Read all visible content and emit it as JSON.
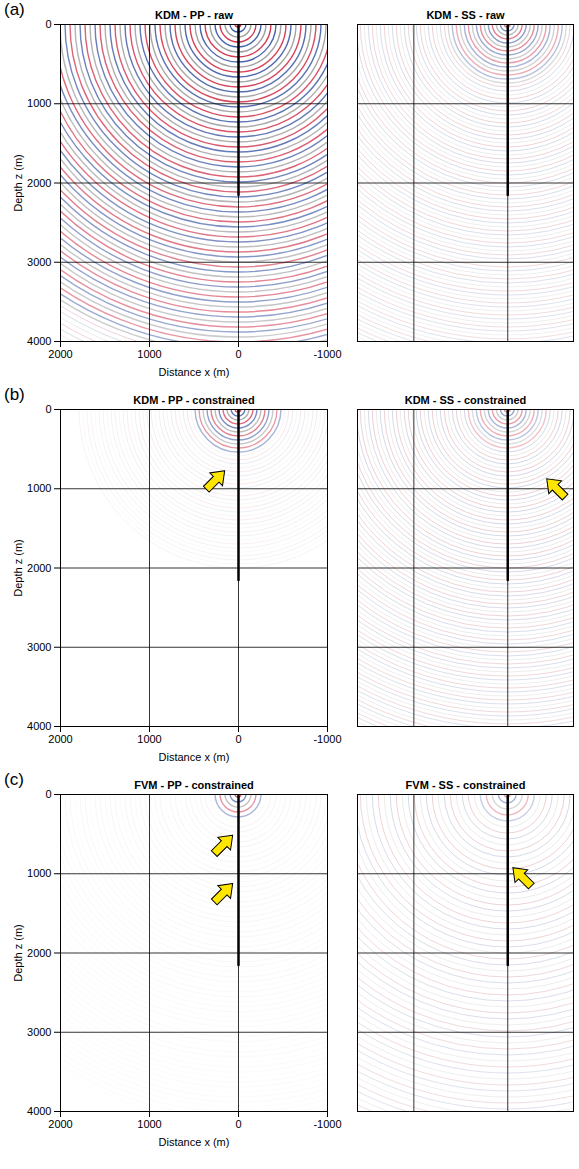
{
  "chart_data": [
    {
      "type": "image",
      "panel": "(a)",
      "title": "KDM - PP - raw",
      "x_label": "Distance x (m)",
      "y_label": "Depth z (m)",
      "xlim": [
        2000,
        -1000
      ],
      "ylim": [
        4000,
        0
      ],
      "xticks": [
        2000,
        1000,
        0,
        -1000
      ],
      "yticks": [
        0,
        1000,
        2000,
        3000,
        4000
      ],
      "grid": true,
      "well": {
        "x": [
          0,
          0
        ],
        "z": [
          0,
          2150
        ]
      },
      "arrows": []
    },
    {
      "type": "image",
      "title": "KDM - SS - raw",
      "xlim": [
        1600,
        -700
      ],
      "ylim": [
        4000,
        0
      ],
      "xticks": [
        1000,
        0
      ],
      "yticks": [
        0,
        1000,
        2000,
        3000,
        4000
      ],
      "grid": true,
      "tick_labels": false,
      "well": {
        "x": [
          0,
          0
        ],
        "z": [
          0,
          2150
        ]
      },
      "arrows": []
    },
    {
      "type": "image",
      "panel": "(b)",
      "title": "KDM - PP - constrained",
      "x_label": "Distance x (m)",
      "y_label": "Depth z (m)",
      "xlim": [
        2000,
        -1000
      ],
      "ylim": [
        4000,
        0
      ],
      "xticks": [
        2000,
        1000,
        0,
        -1000
      ],
      "yticks": [
        0,
        1000,
        2000,
        3000,
        4000
      ],
      "grid": true,
      "well": {
        "x": [
          0,
          0
        ],
        "z": [
          0,
          2150
        ]
      },
      "arrows": [
        {
          "x": 150,
          "z": 780
        }
      ]
    },
    {
      "type": "image",
      "title": "KDM - SS - constrained",
      "xlim": [
        1600,
        -700
      ],
      "ylim": [
        4000,
        0
      ],
      "xticks": [
        1000,
        0
      ],
      "yticks": [
        0,
        1000,
        2000,
        3000,
        4000
      ],
      "grid": true,
      "tick_labels": false,
      "well": {
        "x": [
          0,
          0
        ],
        "z": [
          0,
          2150
        ]
      },
      "arrows": [
        {
          "x": -420,
          "z": 880
        }
      ]
    },
    {
      "type": "image",
      "panel": "(c)",
      "title": "FVM - PP - constrained",
      "x_label": "Distance x (m)",
      "y_label": "Depth z (m)",
      "xlim": [
        2000,
        -1000
      ],
      "ylim": [
        4000,
        0
      ],
      "xticks": [
        2000,
        1000,
        0,
        -1000
      ],
      "yticks": [
        0,
        1000,
        2000,
        3000,
        4000
      ],
      "grid": true,
      "well": {
        "x": [
          0,
          0
        ],
        "z": [
          0,
          2150
        ]
      },
      "arrows": [
        {
          "x": 60,
          "z": 520
        },
        {
          "x": 60,
          "z": 1130
        }
      ]
    },
    {
      "type": "image",
      "title": "FVM - SS - constrained",
      "xlim": [
        1600,
        -700
      ],
      "ylim": [
        4000,
        0
      ],
      "xticks": [
        1000,
        0
      ],
      "yticks": [
        0,
        1000,
        2000,
        3000,
        4000
      ],
      "grid": true,
      "tick_labels": false,
      "well": {
        "x": [
          0,
          0
        ],
        "z": [
          0,
          2150
        ]
      },
      "arrows": [
        {
          "x": -60,
          "z": 930
        }
      ]
    }
  ]
}
